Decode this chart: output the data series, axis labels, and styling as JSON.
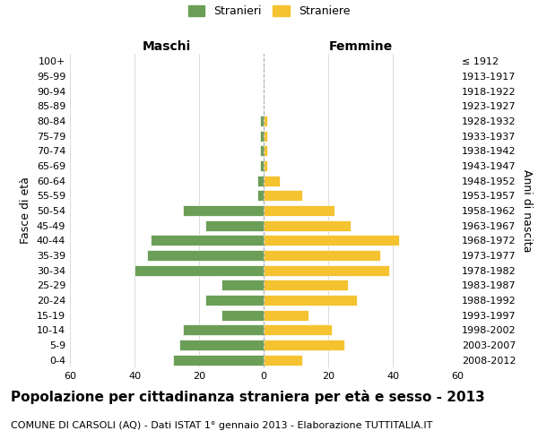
{
  "age_groups": [
    "0-4",
    "5-9",
    "10-14",
    "15-19",
    "20-24",
    "25-29",
    "30-34",
    "35-39",
    "40-44",
    "45-49",
    "50-54",
    "55-59",
    "60-64",
    "65-69",
    "70-74",
    "75-79",
    "80-84",
    "85-89",
    "90-94",
    "95-99",
    "100+"
  ],
  "birth_years": [
    "2008-2012",
    "2003-2007",
    "1998-2002",
    "1993-1997",
    "1988-1992",
    "1983-1987",
    "1978-1982",
    "1973-1977",
    "1968-1972",
    "1963-1967",
    "1958-1962",
    "1953-1957",
    "1948-1952",
    "1943-1947",
    "1938-1942",
    "1933-1937",
    "1928-1932",
    "1923-1927",
    "1918-1922",
    "1913-1917",
    "≤ 1912"
  ],
  "males": [
    28,
    26,
    25,
    13,
    18,
    13,
    40,
    36,
    35,
    18,
    25,
    2,
    2,
    1,
    1,
    1,
    1,
    0,
    0,
    0,
    0
  ],
  "females": [
    12,
    25,
    21,
    14,
    29,
    26,
    39,
    36,
    42,
    27,
    22,
    12,
    5,
    1,
    1,
    1,
    1,
    0,
    0,
    0,
    0
  ],
  "male_color": "#6b9e56",
  "female_color": "#f5c230",
  "bar_edge_color": "#ffffff",
  "grid_color": "#cccccc",
  "center_line_color": "#aaaaaa",
  "bg_color": "#ffffff",
  "title": "Popolazione per cittadinanza straniera per età e sesso - 2013",
  "subtitle": "COMUNE DI CARSOLI (AQ) - Dati ISTAT 1° gennaio 2013 - Elaborazione TUTTITALIA.IT",
  "header_left": "Maschi",
  "header_right": "Femmine",
  "ylabel_left": "Fasce di età",
  "ylabel_right": "Anni di nascita",
  "legend_male": "Stranieri",
  "legend_female": "Straniere",
  "xlim": 60,
  "title_fontsize": 11,
  "subtitle_fontsize": 8,
  "tick_fontsize": 8,
  "header_fontsize": 10,
  "label_fontsize": 9
}
